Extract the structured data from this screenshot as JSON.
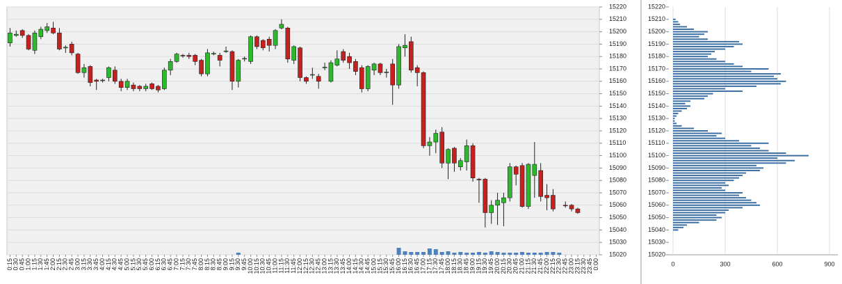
{
  "chart_data": [
    {
      "type": "candlestick",
      "x": [
        "0:15",
        "0:30",
        "0:45",
        "1:00",
        "1:15",
        "1:30",
        "1:45",
        "2:00",
        "2:15",
        "2:30",
        "2:45",
        "3:00",
        "3:15",
        "3:30",
        "3:45",
        "4:00",
        "4:15",
        "4:30",
        "4:45",
        "5:00",
        "5:15",
        "5:30",
        "5:45",
        "6:00",
        "6:15",
        "6:30",
        "6:45",
        "7:00",
        "7:15",
        "7:30",
        "7:45",
        "8:00",
        "8:15",
        "8:30",
        "8:45",
        "9:00",
        "9:15",
        "9:30",
        "9:45",
        "10:00",
        "10:15",
        "10:30",
        "10:45",
        "11:00",
        "11:15",
        "11:30",
        "11:45",
        "12:00",
        "12:15",
        "12:30",
        "12:45",
        "13:00",
        "13:15",
        "13:30",
        "13:45",
        "14:00",
        "14:15",
        "14:30",
        "14:45",
        "15:00",
        "15:15",
        "15:30",
        "15:45",
        "16:00",
        "16:15",
        "16:30",
        "16:45",
        "17:00",
        "17:15",
        "17:30",
        "17:45",
        "18:00",
        "18:15",
        "18:30",
        "18:45",
        "19:00",
        "19:15",
        "19:30",
        "19:45",
        "20:00",
        "20:15",
        "20:30",
        "20:45",
        "21:00",
        "21:15",
        "21:30",
        "21:45",
        "22:00",
        "22:15",
        "22:30",
        "22:45",
        "23:00",
        "23:15",
        "23:30",
        "23:45",
        "0:00"
      ],
      "open": [
        15191,
        15197,
        15201,
        15197,
        15185,
        15196,
        15201,
        15203,
        15199,
        15187,
        15190,
        15182,
        15167,
        15172,
        15161,
        15160.5,
        15163,
        15169,
        15160,
        15155,
        15157,
        15156,
        15154,
        15158,
        15156,
        15154,
        15169,
        15176,
        15181,
        15181,
        15181,
        15177,
        15166,
        15182,
        15181,
        15184,
        15184,
        15160,
        15178,
        15176,
        15196,
        15193,
        15194,
        15189,
        15203,
        15203,
        15177,
        15187,
        15163,
        15165,
        15164,
        15171,
        15160,
        15173,
        15184,
        15180,
        15176,
        15171,
        15154,
        15169,
        15174,
        15167,
        15174,
        15157,
        15187,
        15192,
        15171,
        15167,
        15108,
        15111,
        15119,
        15094,
        15106,
        15091,
        15095,
        15108,
        15081,
        15081,
        15054,
        15060,
        15062,
        15066,
        15091,
        15092,
        15059,
        15084,
        15088,
        15068,
        15068,
        null,
        15060,
        15060,
        15057,
        null,
        null,
        null
      ],
      "high": [
        15203,
        15201,
        15202,
        15198,
        15201,
        15204,
        15207,
        15208,
        15203,
        15189,
        15192,
        15183,
        15174,
        15173,
        15162,
        15162,
        15172,
        15172,
        15162,
        15162,
        15159,
        15157,
        15158,
        15159,
        15157,
        15171,
        15178,
        15183,
        15182,
        15183,
        15182,
        15178,
        15186,
        15184,
        15183,
        15188,
        15185,
        15178,
        15180,
        15197,
        15197,
        15194,
        15196,
        15202,
        15210,
        15204,
        15189,
        15188,
        15164,
        15171,
        15166,
        15175,
        15177,
        15185,
        15186,
        15183,
        15178,
        15173,
        15173,
        15175,
        15175,
        15170,
        15178,
        15190,
        15198,
        15196,
        15173,
        15168,
        15115,
        15121,
        15123,
        15106,
        15107,
        15098,
        15113,
        15110,
        15082,
        15082,
        15064,
        15070,
        15070,
        15094,
        15092,
        15094,
        15094,
        15111,
        15094,
        15077,
        15073,
        null,
        15063,
        15061,
        15058,
        null,
        null,
        null
      ],
      "low": [
        15188,
        15196,
        15195,
        15185,
        15182,
        15194,
        15199,
        15198,
        15185,
        15183,
        15181,
        15166,
        15163,
        15156,
        15153,
        15159,
        15160,
        15158,
        15152,
        15153,
        15152,
        15152,
        15152,
        15153,
        15151,
        15153,
        15165,
        15175,
        15179,
        15178,
        15173,
        15164,
        15164,
        15181,
        15172,
        15183,
        15153,
        15155,
        15176,
        15174,
        15186,
        15185,
        15184,
        15186,
        15202,
        15175,
        15174,
        15160,
        15158,
        15162,
        15154,
        15169,
        15159,
        15172,
        15175,
        15170,
        15165,
        15151,
        15152,
        15165,
        15165,
        15163,
        15141,
        15154,
        15180,
        15167,
        15156,
        15106,
        15100,
        15102,
        15090,
        15081,
        15087,
        15088,
        15088,
        15079,
        15062,
        15042,
        15045,
        15044,
        15043,
        15063,
        15076,
        15058,
        15057,
        15066,
        15063,
        15056,
        15055,
        null,
        15058,
        15055,
        15053,
        null,
        null,
        null
      ],
      "close": [
        15199,
        15198,
        15197,
        15186,
        15199,
        15202,
        15204,
        15199,
        15186,
        15187.5,
        15183,
        15167,
        15171,
        15159,
        15160,
        15161,
        15171,
        15160,
        15155,
        15160,
        15154,
        15154,
        15156,
        15154,
        15153,
        15169,
        15176,
        15182,
        15180.5,
        15180,
        15176,
        15166,
        15183,
        15182.5,
        15177,
        15184.5,
        15160,
        15177,
        15178.5,
        15196,
        15188,
        15187,
        15189,
        15201,
        15206,
        15178,
        15188,
        15163,
        15160,
        15165.5,
        15160,
        15171.5,
        15175,
        15178,
        15177,
        15175,
        15168,
        15154,
        15172,
        15174,
        15167,
        15167.5,
        15157,
        15188,
        15189,
        15169,
        15167,
        15108,
        15111,
        15118,
        15094,
        15105,
        15094,
        15096,
        15108,
        15082,
        15080.5,
        15054,
        15060,
        15064,
        15066,
        15091,
        15085,
        15059,
        15093,
        15093,
        15067,
        15066,
        15057,
        null,
        15059.5,
        15057,
        15054,
        null,
        null,
        null
      ],
      "volume": [
        0,
        0,
        0,
        0,
        0,
        0,
        0,
        0,
        0,
        0,
        0,
        0,
        0,
        0,
        0,
        0,
        0,
        0,
        0,
        0,
        0,
        0,
        0,
        0,
        0,
        0,
        0,
        0,
        0,
        0,
        0,
        0,
        0,
        0,
        0,
        0,
        0,
        3,
        0,
        0,
        0,
        0,
        0,
        0,
        0,
        0,
        0,
        0,
        0,
        0,
        0,
        0,
        0,
        0,
        0,
        0,
        0,
        0,
        0,
        0,
        0,
        0,
        0,
        10,
        5,
        4,
        4,
        4,
        9,
        8,
        4,
        5,
        3,
        4,
        3,
        3,
        4,
        3,
        5,
        4,
        3,
        3,
        3,
        4,
        3,
        3,
        3,
        4,
        4,
        3,
        0,
        0,
        0,
        0,
        0,
        0
      ],
      "ylim": [
        15020,
        15220
      ],
      "yticks": [
        15020,
        15030,
        15040,
        15050,
        15060,
        15070,
        15080,
        15090,
        15100,
        15110,
        15120,
        15130,
        15140,
        15150,
        15160,
        15170,
        15180,
        15190,
        15200,
        15210,
        15220
      ],
      "up_color": "#2db82d",
      "down_color": "#c8201e",
      "volume_color": "#4f81bd",
      "grid": true
    },
    {
      "type": "profile",
      "levels": [
        15040,
        15042,
        15044,
        15046,
        15048,
        15050,
        15052,
        15054,
        15056,
        15058,
        15060,
        15062,
        15064,
        15066,
        15068,
        15070,
        15072,
        15074,
        15076,
        15078,
        15080,
        15082,
        15084,
        15086,
        15088,
        15090,
        15092,
        15094,
        15096,
        15098,
        15100,
        15102,
        15104,
        15106,
        15108,
        15110,
        15112,
        15114,
        15116,
        15118,
        15120,
        15122,
        15124,
        15126,
        15128,
        15130,
        15132,
        15134,
        15136,
        15138,
        15140,
        15142,
        15144,
        15146,
        15148,
        15150,
        15152,
        15154,
        15156,
        15158,
        15160,
        15162,
        15164,
        15166,
        15168,
        15170,
        15172,
        15174,
        15176,
        15178,
        15180,
        15182,
        15184,
        15186,
        15188,
        15190,
        15192,
        15194,
        15196,
        15198,
        15200,
        15202,
        15204,
        15206,
        15208,
        15210
      ],
      "values": [
        30,
        60,
        80,
        150,
        250,
        280,
        250,
        300,
        320,
        400,
        500,
        480,
        450,
        420,
        380,
        400,
        300,
        280,
        320,
        300,
        350,
        380,
        400,
        420,
        500,
        520,
        480,
        650,
        700,
        600,
        780,
        650,
        550,
        500,
        450,
        550,
        380,
        300,
        250,
        280,
        200,
        120,
        50,
        20,
        10,
        10,
        20,
        30,
        50,
        80,
        100,
        70,
        100,
        180,
        200,
        230,
        400,
        300,
        480,
        620,
        650,
        600,
        580,
        620,
        450,
        550,
        400,
        350,
        300,
        250,
        200,
        220,
        240,
        300,
        350,
        400,
        380,
        200,
        150,
        180,
        200,
        120,
        80,
        40,
        30,
        15
      ],
      "xlim": [
        0,
        900
      ],
      "xticks": [
        0,
        300,
        600,
        900
      ],
      "ylim": [
        15020,
        15220
      ],
      "yticks": [
        15020,
        15030,
        15040,
        15050,
        15060,
        15070,
        15080,
        15090,
        15100,
        15110,
        15120,
        15130,
        15140,
        15150,
        15160,
        15170,
        15180,
        15190,
        15200,
        15210,
        15220
      ],
      "color": "#3d6fa3",
      "grid": true
    }
  ]
}
